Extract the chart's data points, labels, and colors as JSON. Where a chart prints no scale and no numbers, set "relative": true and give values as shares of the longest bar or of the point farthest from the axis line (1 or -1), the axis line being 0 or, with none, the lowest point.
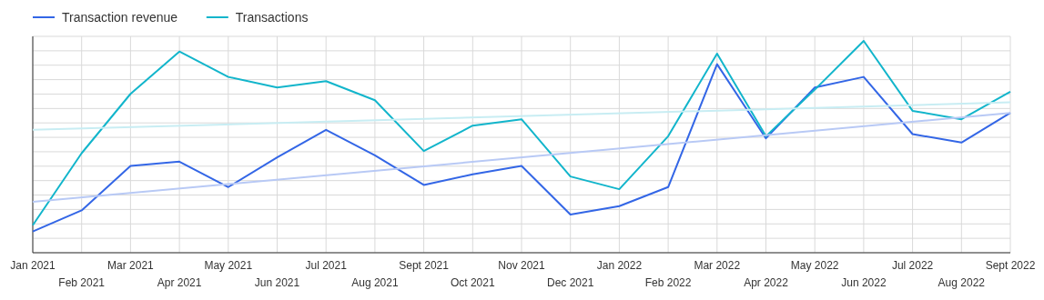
{
  "chart_data": {
    "type": "line",
    "relative": true,
    "grid": true,
    "legend": "top left",
    "marker": "none",
    "line_style": "solid",
    "categories": [
      "Jan 2021",
      "Feb 2021",
      "Mar 2021",
      "Apr 2021",
      "May 2021",
      "Jun 2021",
      "Jul 2021",
      "Aug 2021",
      "Sept 2021",
      "Oct 2021",
      "Nov 2021",
      "Dec 2021",
      "Jan 2022",
      "Feb 2022",
      "Mar 2022",
      "Apr 2022",
      "May 2022",
      "Jun 2022",
      "Jul 2022",
      "Aug 2022",
      "Sept 2022"
    ],
    "series": [
      {
        "name": "Transaction revenue",
        "color": "#3366e6",
        "values": [
          0.1,
          0.2,
          0.41,
          0.43,
          0.31,
          0.45,
          0.58,
          0.46,
          0.32,
          0.37,
          0.41,
          0.18,
          0.22,
          0.31,
          0.89,
          0.54,
          0.78,
          0.83,
          0.56,
          0.52,
          0.66
        ]
      },
      {
        "name": "Transactions",
        "color": "#12b5cb",
        "values": [
          0.13,
          0.47,
          0.75,
          0.95,
          0.83,
          0.78,
          0.81,
          0.72,
          0.48,
          0.6,
          0.63,
          0.36,
          0.3,
          0.55,
          0.94,
          0.55,
          0.77,
          1,
          0.67,
          0.63,
          0.76
        ]
      },
      {
        "color": "#b8c9f5",
        "x": [
          "Jan 2021",
          "Sept 2022"
        ],
        "values": [
          0.24,
          0.66
        ]
      },
      {
        "color": "#c8edf3",
        "x": [
          "Jan 2021",
          "Sept 2022"
        ],
        "values": [
          0.58,
          0.71
        ]
      }
    ]
  }
}
